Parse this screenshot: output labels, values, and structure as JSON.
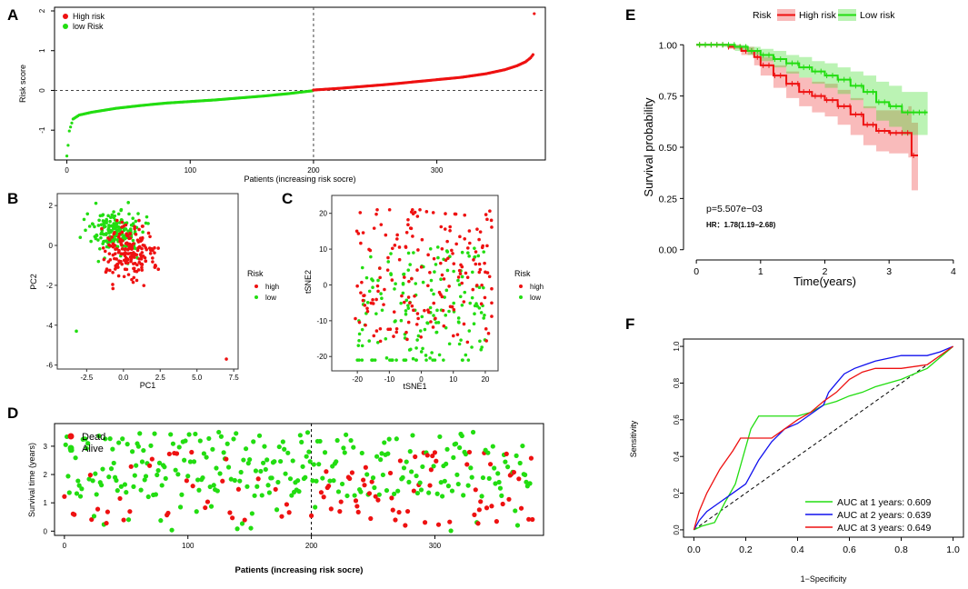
{
  "figure_colors": {
    "high": "#ee1111",
    "low": "#22dd11",
    "blue": "#1010ee",
    "black": "#000000"
  },
  "panels": {
    "A": {
      "letter": "A"
    },
    "B": {
      "letter": "B"
    },
    "C": {
      "letter": "C"
    },
    "D": {
      "letter": "D"
    },
    "E": {
      "letter": "E"
    },
    "F": {
      "letter": "F"
    }
  },
  "chart_data": [
    {
      "id": "A",
      "type": "scatter",
      "title": "",
      "xlabel": "Patients (increasing risk socre)",
      "ylabel": "Risk score",
      "xlim": [
        0,
        380
      ],
      "ylim": [
        -1.75,
        2.0
      ],
      "xticks": [
        "0",
        "100",
        "200",
        "300"
      ],
      "yticks": [
        "-1",
        "0",
        "1",
        "2"
      ],
      "cutoff_x": 200,
      "cutoff_y": 0,
      "legend": [
        "High risk",
        "low Risk"
      ],
      "n_patients": 380,
      "series": [
        {
          "name": "low Risk",
          "color": "#22dd11",
          "x": [
            0,
            1,
            2,
            5,
            10,
            20,
            40,
            60,
            80,
            100,
            120,
            140,
            160,
            180,
            199
          ],
          "y": [
            -1.65,
            -1.38,
            -1.02,
            -0.72,
            -0.62,
            -0.55,
            -0.45,
            -0.38,
            -0.32,
            -0.28,
            -0.24,
            -0.19,
            -0.14,
            -0.08,
            -0.01
          ]
        },
        {
          "name": "High risk",
          "color": "#ee1111",
          "x": [
            200,
            220,
            240,
            260,
            280,
            300,
            320,
            340,
            355,
            365,
            372,
            376,
            378,
            379
          ],
          "y": [
            0.01,
            0.05,
            0.1,
            0.15,
            0.21,
            0.27,
            0.33,
            0.42,
            0.52,
            0.62,
            0.72,
            0.82,
            0.9,
            1.93
          ]
        }
      ]
    },
    {
      "id": "B",
      "type": "scatter",
      "xlabel": "PC1",
      "ylabel": "PC2",
      "xlim": [
        -4.5,
        7.8
      ],
      "ylim": [
        -6.2,
        2.6
      ],
      "xticks": [
        "-2.5",
        "0.0",
        "2.5",
        "5.0",
        "7.5"
      ],
      "yticks": [
        "-6",
        "-4",
        "-2",
        "0",
        "2"
      ],
      "legend_title": "Risk",
      "legend": [
        "high",
        "low"
      ],
      "outliers": [
        {
          "group": "high",
          "x": 7.0,
          "y": -5.7
        },
        {
          "group": "low",
          "x": -3.2,
          "y": -4.3
        }
      ]
    },
    {
      "id": "C",
      "type": "scatter",
      "xlabel": "tSNE1",
      "ylabel": "tSNE2",
      "xlim": [
        -28,
        24
      ],
      "ylim": [
        -24,
        25
      ],
      "xticks": [
        "-20",
        "-10",
        "0",
        "10",
        "20"
      ],
      "yticks": [
        "-20",
        "-10",
        "0",
        "10",
        "20"
      ],
      "legend_title": "Risk",
      "legend": [
        "high",
        "low"
      ]
    },
    {
      "id": "D",
      "type": "scatter",
      "xlabel": "Patients (increasing risk socre)",
      "ylabel": "Survival time (years)",
      "xlim": [
        -8,
        388
      ],
      "ylim": [
        -0.15,
        3.8
      ],
      "xticks": [
        "0",
        "100",
        "200",
        "300"
      ],
      "yticks": [
        "0",
        "1",
        "2",
        "3"
      ],
      "cutoff_x": 200,
      "legend": [
        "Dead",
        "Alive"
      ]
    },
    {
      "id": "E",
      "type": "line",
      "title": "",
      "xlabel": "Time(years)",
      "ylabel": "Survival probability",
      "xlim": [
        -0.2,
        4.2
      ],
      "ylim": [
        -0.05,
        1.05
      ],
      "xticks": [
        "0",
        "1",
        "2",
        "3",
        "4"
      ],
      "yticks": [
        "0.00",
        "0.25",
        "0.50",
        "0.75",
        "1.00"
      ],
      "legend_title": "Risk",
      "legend": [
        "High risk",
        "Low risk"
      ],
      "pvalue": "p=5.507e−03",
      "hr": "HR：1.78(1.19−2.68)",
      "series": [
        {
          "name": "High risk",
          "color": "#ee1111",
          "x": [
            0,
            0.5,
            0.7,
            0.9,
            1.0,
            1.2,
            1.4,
            1.6,
            1.8,
            2.0,
            2.2,
            2.4,
            2.6,
            2.8,
            3.0,
            3.3,
            3.35,
            3.45
          ],
          "y": [
            1.0,
            0.99,
            0.97,
            0.94,
            0.9,
            0.85,
            0.81,
            0.77,
            0.75,
            0.73,
            0.7,
            0.66,
            0.61,
            0.58,
            0.57,
            0.57,
            0.46,
            0.46
          ],
          "ci_upper": [
            1.0,
            1.0,
            0.99,
            0.97,
            0.94,
            0.9,
            0.87,
            0.84,
            0.82,
            0.81,
            0.78,
            0.74,
            0.7,
            0.68,
            0.68,
            0.7,
            0.62,
            0.62
          ],
          "ci_lower": [
            1.0,
            0.98,
            0.95,
            0.9,
            0.85,
            0.79,
            0.74,
            0.7,
            0.67,
            0.65,
            0.61,
            0.56,
            0.51,
            0.48,
            0.47,
            0.45,
            0.29,
            0.29
          ]
        },
        {
          "name": "Low risk",
          "color": "#22dd11",
          "x": [
            0,
            0.4,
            0.6,
            0.8,
            1.0,
            1.2,
            1.4,
            1.6,
            1.8,
            2.0,
            2.2,
            2.4,
            2.6,
            2.8,
            3.0,
            3.2,
            3.4,
            3.6
          ],
          "y": [
            1.0,
            1.0,
            0.99,
            0.97,
            0.95,
            0.93,
            0.91,
            0.89,
            0.87,
            0.85,
            0.83,
            0.8,
            0.77,
            0.72,
            0.7,
            0.67,
            0.67,
            0.67
          ],
          "ci_upper": [
            1.0,
            1.0,
            1.0,
            0.99,
            0.98,
            0.97,
            0.95,
            0.94,
            0.92,
            0.91,
            0.89,
            0.87,
            0.85,
            0.82,
            0.8,
            0.77,
            0.77,
            0.77
          ],
          "ci_lower": [
            1.0,
            0.99,
            0.97,
            0.95,
            0.92,
            0.89,
            0.86,
            0.84,
            0.81,
            0.79,
            0.76,
            0.73,
            0.69,
            0.63,
            0.6,
            0.56,
            0.56,
            0.56
          ]
        }
      ]
    },
    {
      "id": "F",
      "type": "line",
      "xlabel": "1−Specificity",
      "ylabel": "Sensitivity",
      "xlim": [
        -0.04,
        1.04
      ],
      "ylim": [
        -0.04,
        1.04
      ],
      "xticks": [
        "0.0",
        "0.2",
        "0.4",
        "0.6",
        "0.8",
        "1.0"
      ],
      "yticks": [
        "0.0",
        "0.2",
        "0.4",
        "0.6",
        "0.8",
        "1.0"
      ],
      "legend": [
        "AUC at 1 years: 0.609",
        "AUC at 2 years: 0.639",
        "AUC at 3 years: 0.649"
      ],
      "series": [
        {
          "name": "AUC at 1 years: 0.609",
          "color": "#22dd11",
          "x": [
            0,
            0.03,
            0.08,
            0.12,
            0.16,
            0.18,
            0.2,
            0.22,
            0.25,
            0.3,
            0.35,
            0.4,
            0.45,
            0.5,
            0.55,
            0.6,
            0.65,
            0.7,
            0.8,
            0.9,
            1.0
          ],
          "y": [
            0,
            0.02,
            0.04,
            0.15,
            0.25,
            0.35,
            0.45,
            0.55,
            0.62,
            0.62,
            0.62,
            0.62,
            0.64,
            0.68,
            0.7,
            0.73,
            0.75,
            0.78,
            0.82,
            0.88,
            1.0
          ]
        },
        {
          "name": "AUC at 2 years: 0.639",
          "color": "#1010ee",
          "x": [
            0,
            0.02,
            0.05,
            0.1,
            0.15,
            0.2,
            0.25,
            0.3,
            0.35,
            0.4,
            0.45,
            0.5,
            0.52,
            0.55,
            0.58,
            0.62,
            0.66,
            0.7,
            0.8,
            0.9,
            0.95,
            1.0
          ],
          "y": [
            0,
            0.05,
            0.1,
            0.15,
            0.2,
            0.25,
            0.38,
            0.48,
            0.55,
            0.58,
            0.63,
            0.68,
            0.75,
            0.8,
            0.85,
            0.88,
            0.9,
            0.92,
            0.95,
            0.95,
            0.97,
            1.0
          ]
        },
        {
          "name": "AUC at 3 years: 0.649",
          "color": "#ee1111",
          "x": [
            0,
            0.02,
            0.05,
            0.1,
            0.15,
            0.18,
            0.22,
            0.25,
            0.3,
            0.35,
            0.4,
            0.45,
            0.5,
            0.55,
            0.6,
            0.65,
            0.7,
            0.75,
            0.8,
            0.9,
            1.0
          ],
          "y": [
            0,
            0.1,
            0.2,
            0.33,
            0.43,
            0.5,
            0.5,
            0.5,
            0.5,
            0.55,
            0.6,
            0.64,
            0.7,
            0.75,
            0.82,
            0.86,
            0.88,
            0.88,
            0.88,
            0.9,
            1.0
          ]
        }
      ]
    }
  ]
}
